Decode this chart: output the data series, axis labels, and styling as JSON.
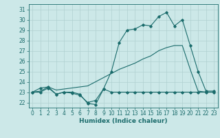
{
  "title": "",
  "xlabel": "Humidex (Indice chaleur)",
  "bg_color": "#cce8e8",
  "line_color": "#1a6b6b",
  "grid_color": "#b0d0d0",
  "xlim": [
    -0.5,
    23.5
  ],
  "ylim": [
    21.5,
    31.5
  ],
  "xticks": [
    0,
    1,
    2,
    3,
    4,
    5,
    6,
    7,
    8,
    9,
    10,
    11,
    12,
    13,
    14,
    15,
    16,
    17,
    18,
    19,
    20,
    21,
    22,
    23
  ],
  "yticks": [
    22,
    23,
    24,
    25,
    26,
    27,
    28,
    29,
    30,
    31
  ],
  "line1_x": [
    0,
    1,
    2,
    3,
    4,
    5,
    6,
    7,
    8,
    9,
    10,
    11,
    12,
    13,
    14,
    15,
    16,
    17,
    18,
    19,
    20,
    21,
    22,
    23
  ],
  "line1_y": [
    23.0,
    23.0,
    23.4,
    22.8,
    23.0,
    22.9,
    22.7,
    22.0,
    22.2,
    23.3,
    23.0,
    23.0,
    23.0,
    23.0,
    23.0,
    23.0,
    23.0,
    23.0,
    23.0,
    23.0,
    23.0,
    23.0,
    23.0,
    23.0
  ],
  "line2_x": [
    0,
    1,
    2,
    3,
    4,
    5,
    6,
    7,
    8,
    9,
    10,
    11,
    12,
    13,
    14,
    15,
    16,
    17,
    18,
    19,
    20,
    21,
    22,
    23
  ],
  "line2_y": [
    23.0,
    23.1,
    23.5,
    23.2,
    23.3,
    23.4,
    23.5,
    23.6,
    24.0,
    24.4,
    24.8,
    25.2,
    25.5,
    25.8,
    26.2,
    26.5,
    27.0,
    27.3,
    27.5,
    27.5,
    25.2,
    23.1,
    23.0,
    23.0
  ],
  "line3_x": [
    0,
    1,
    2,
    3,
    4,
    5,
    6,
    7,
    8,
    9,
    10,
    11,
    12,
    13,
    14,
    15,
    16,
    17,
    18,
    19,
    20,
    21,
    22,
    23
  ],
  "line3_y": [
    23.0,
    23.4,
    23.5,
    22.8,
    23.0,
    23.0,
    22.8,
    21.9,
    21.8,
    23.3,
    25.0,
    27.8,
    29.0,
    29.1,
    29.5,
    29.4,
    30.3,
    30.7,
    29.4,
    30.0,
    27.5,
    25.0,
    23.1,
    23.1
  ],
  "xlabel_fontsize": 6.5,
  "tick_fontsize": 5.5
}
